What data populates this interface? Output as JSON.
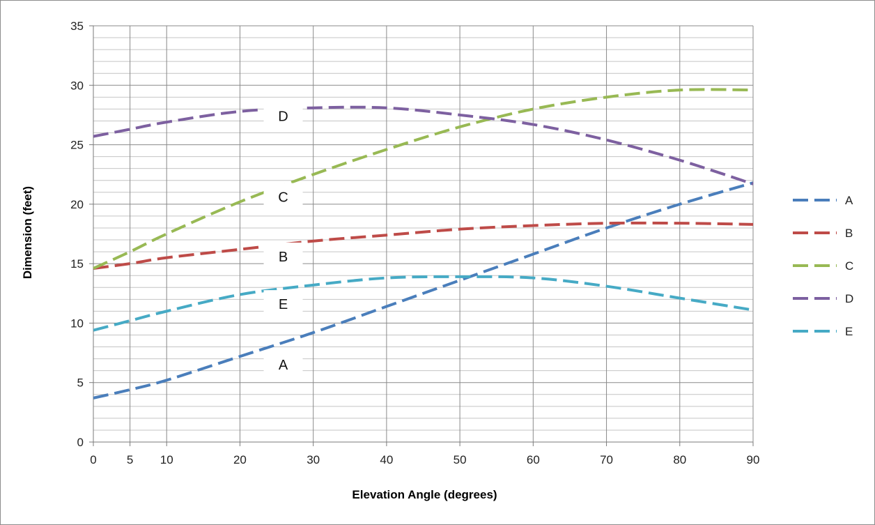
{
  "chart_data": {
    "type": "line",
    "title": "",
    "xlabel": "Elevation Angle (degrees)",
    "ylabel": "Dimension (feet)",
    "xlim": [
      0,
      90
    ],
    "ylim": [
      0,
      35
    ],
    "x_ticks": [
      "0",
      "5",
      "10",
      "20",
      "30",
      "40",
      "50",
      "60",
      "70",
      "80",
      "90"
    ],
    "y_ticks": [
      "0",
      "5",
      "10",
      "15",
      "20",
      "25",
      "30",
      "35"
    ],
    "grid": true,
    "line_style": "dashed",
    "legend_position": "right",
    "x": [
      0,
      5,
      10,
      20,
      30,
      40,
      50,
      60,
      70,
      80,
      90
    ],
    "series": [
      {
        "name": "A",
        "color": "#4a7ebb",
        "values": [
          3.7,
          4.4,
          5.2,
          7.2,
          9.2,
          11.4,
          13.6,
          15.8,
          18.0,
          20.0,
          21.8
        ],
        "label": "A",
        "label_at": [
          24,
          6.5
        ]
      },
      {
        "name": "B",
        "color": "#be4b48",
        "values": [
          14.6,
          15.0,
          15.5,
          16.2,
          16.9,
          17.4,
          17.9,
          18.2,
          18.4,
          18.4,
          18.3
        ],
        "label": "B",
        "label_at": [
          24,
          15.6
        ]
      },
      {
        "name": "C",
        "color": "#98b954",
        "values": [
          14.6,
          16.0,
          17.5,
          20.2,
          22.5,
          24.6,
          26.5,
          28.0,
          29.0,
          29.6,
          29.6
        ],
        "label": "C",
        "label_at": [
          24,
          20.6
        ]
      },
      {
        "name": "D",
        "color": "#7d60a0",
        "values": [
          25.7,
          26.3,
          26.9,
          27.8,
          28.1,
          28.1,
          27.5,
          26.7,
          25.4,
          23.7,
          21.7
        ],
        "label": "D",
        "label_at": [
          24,
          27.4
        ]
      },
      {
        "name": "E",
        "color": "#46aac5",
        "values": [
          9.4,
          10.2,
          11.0,
          12.4,
          13.2,
          13.8,
          13.9,
          13.8,
          13.1,
          12.1,
          11.1
        ],
        "label": "E",
        "label_at": [
          24,
          11.6
        ]
      }
    ]
  }
}
